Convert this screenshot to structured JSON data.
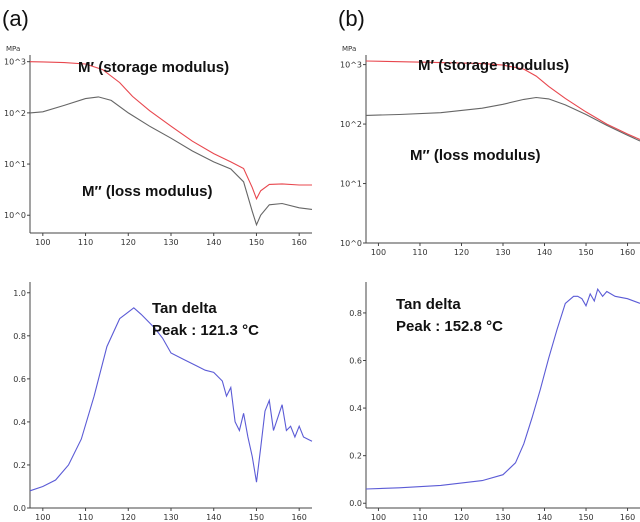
{
  "panels": {
    "a": "(a)",
    "b": "(b)"
  },
  "chart_data": [
    {
      "type": "line",
      "panel": "a",
      "yunit": "MPa",
      "yscale": "log",
      "xlim": [
        97,
        163
      ],
      "ylim": [
        0.45,
        1350
      ],
      "xticks": [
        100,
        110,
        120,
        130,
        140,
        150,
        160
      ],
      "yticks": [
        {
          "v": 1000,
          "label": "10^3"
        },
        {
          "v": 100,
          "label": "10^2"
        },
        {
          "v": 10,
          "label": "10^1"
        },
        {
          "v": 1,
          "label": "10^0"
        }
      ],
      "series": [
        {
          "label": "M′ (storage modulus)",
          "color": "#e8474e",
          "x": [
            97,
            100,
            105,
            110,
            114,
            118,
            121,
            125,
            130,
            135,
            140,
            144,
            147,
            149,
            150,
            151,
            153,
            156,
            160,
            163
          ],
          "y": [
            1000,
            990,
            960,
            900,
            700,
            390,
            210,
            110,
            55,
            28,
            16,
            11,
            8.2,
            3.5,
            2.1,
            3.0,
            4.0,
            4.1,
            3.9,
            3.9
          ]
        },
        {
          "label": "M″ (loss modulus)",
          "color": "#666666",
          "x": [
            97,
            100,
            105,
            110,
            113,
            116,
            120,
            125,
            130,
            135,
            140,
            144,
            147,
            149,
            150,
            151,
            153,
            156,
            160,
            163
          ],
          "y": [
            100,
            105,
            140,
            190,
            205,
            175,
            100,
            55,
            32,
            18,
            11,
            8,
            4.5,
            1.2,
            0.65,
            1.0,
            1.6,
            1.7,
            1.4,
            1.3
          ]
        }
      ],
      "annotations": [
        {
          "text": "M′ (storage modulus)",
          "series": 0
        },
        {
          "text": "M″ (loss modulus)",
          "series": 1
        }
      ]
    },
    {
      "type": "line",
      "panel": "b",
      "yunit": "MPa",
      "yscale": "log",
      "xlim": [
        97,
        163
      ],
      "ylim": [
        1,
        1450
      ],
      "xticks": [
        100,
        110,
        120,
        130,
        140,
        150,
        160
      ],
      "yticks": [
        {
          "v": 1000,
          "label": "10^3"
        },
        {
          "v": 100,
          "label": "10^2"
        },
        {
          "v": 10,
          "label": "10^1"
        },
        {
          "v": 1,
          "label": "10^0"
        }
      ],
      "series": [
        {
          "label": "M′ (storage modulus)",
          "color": "#e8474e",
          "x": [
            97,
            105,
            115,
            125,
            130,
            135,
            138,
            141,
            145,
            150,
            155,
            160,
            163
          ],
          "y": [
            1150,
            1120,
            1080,
            1040,
            980,
            840,
            640,
            430,
            270,
            160,
            100,
            68,
            55
          ]
        },
        {
          "label": "M″ (loss modulus)",
          "color": "#666666",
          "x": [
            97,
            105,
            115,
            125,
            130,
            135,
            138,
            141,
            145,
            150,
            155,
            160,
            163
          ],
          "y": [
            140,
            145,
            155,
            185,
            215,
            260,
            280,
            265,
            210,
            145,
            95,
            65,
            52
          ]
        }
      ],
      "annotations": [
        {
          "text": "M′ (storage modulus)",
          "series": 0
        },
        {
          "text": "M″ (loss modulus)",
          "series": 1
        }
      ]
    },
    {
      "type": "line",
      "panel": "a",
      "xlim": [
        97,
        163
      ],
      "ylim": [
        0,
        1.05
      ],
      "xticks": [
        100,
        110,
        120,
        130,
        140,
        150,
        160
      ],
      "yticks": [
        {
          "v": 0,
          "label": "0.0"
        },
        {
          "v": 0.2,
          "label": "0.2"
        },
        {
          "v": 0.4,
          "label": "0.4"
        },
        {
          "v": 0.6,
          "label": "0.6"
        },
        {
          "v": 0.8,
          "label": "0.8"
        },
        {
          "v": 1.0,
          "label": "1.0"
        }
      ],
      "series": [
        {
          "label": "Tan delta",
          "color": "#5b5bd6",
          "x": [
            97,
            100,
            103,
            106,
            109,
            112,
            115,
            118,
            120,
            121.3,
            123,
            126,
            128,
            130,
            133,
            136,
            138,
            140,
            142,
            143,
            144,
            145,
            146,
            147,
            148,
            149,
            150,
            151,
            152,
            153,
            154,
            155,
            156,
            157,
            158,
            159,
            160,
            161,
            162,
            163
          ],
          "y": [
            0.08,
            0.1,
            0.13,
            0.2,
            0.32,
            0.52,
            0.75,
            0.88,
            0.91,
            0.93,
            0.9,
            0.84,
            0.79,
            0.72,
            0.69,
            0.66,
            0.64,
            0.63,
            0.59,
            0.52,
            0.56,
            0.4,
            0.36,
            0.44,
            0.33,
            0.24,
            0.12,
            0.28,
            0.45,
            0.5,
            0.36,
            0.42,
            0.48,
            0.36,
            0.38,
            0.33,
            0.38,
            0.33,
            0.32,
            0.31
          ]
        }
      ],
      "annotations": [
        {
          "text": "Tan delta"
        },
        {
          "text": "Peak : 121.3 °C"
        }
      ]
    },
    {
      "type": "line",
      "panel": "b",
      "xlim": [
        97,
        163
      ],
      "ylim": [
        -0.02,
        0.93
      ],
      "xticks": [
        100,
        110,
        120,
        130,
        140,
        150,
        160
      ],
      "yticks": [
        {
          "v": 0,
          "label": "0.0"
        },
        {
          "v": 0.2,
          "label": "0.2"
        },
        {
          "v": 0.4,
          "label": "0.4"
        },
        {
          "v": 0.6,
          "label": "0.6"
        },
        {
          "v": 0.8,
          "label": "0.8"
        }
      ],
      "series": [
        {
          "label": "Tan delta",
          "color": "#5b5bd6",
          "x": [
            97,
            105,
            115,
            125,
            130,
            133,
            135,
            137,
            139,
            141,
            143,
            145,
            147,
            148,
            149,
            150,
            151,
            152,
            152.8,
            154,
            155,
            157,
            160,
            163
          ],
          "y": [
            0.06,
            0.065,
            0.075,
            0.095,
            0.12,
            0.17,
            0.25,
            0.36,
            0.48,
            0.61,
            0.73,
            0.84,
            0.87,
            0.87,
            0.86,
            0.83,
            0.88,
            0.85,
            0.9,
            0.87,
            0.89,
            0.87,
            0.86,
            0.84
          ]
        }
      ],
      "annotations": [
        {
          "text": "Tan delta"
        },
        {
          "text": "Peak : 152.8 °C"
        }
      ]
    }
  ]
}
